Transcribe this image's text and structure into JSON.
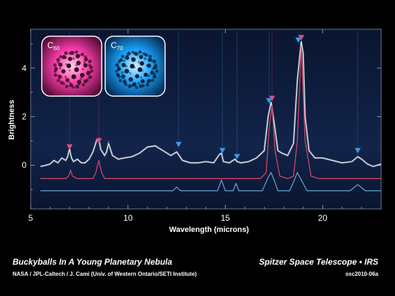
{
  "chart_data": {
    "type": "line",
    "title": "",
    "xlabel": "Wavelength (microns)",
    "ylabel": "Brightness",
    "xlim": [
      5,
      23
    ],
    "ylim": [
      -1.8,
      5.6
    ],
    "x_ticks": [
      "5",
      "10",
      "15",
      "20"
    ],
    "x_tick_values": [
      5,
      10,
      15,
      20
    ],
    "y_ticks": [
      "0",
      "2",
      "4"
    ],
    "y_tick_values": [
      0,
      2,
      4
    ],
    "colors": {
      "background": "#0b1833",
      "observed": "#ffffff",
      "c60": "#e04a6a",
      "c70": "#6aa8d8",
      "c60_marker": "#e0508a",
      "c70_marker": "#3a9ae8"
    },
    "series": [
      {
        "key": "observed",
        "x": [
          5.5,
          5.8,
          6.0,
          6.2,
          6.4,
          6.6,
          6.8,
          6.9,
          7.0,
          7.05,
          7.1,
          7.2,
          7.4,
          7.6,
          7.8,
          8.0,
          8.2,
          8.4,
          8.5,
          8.6,
          8.8,
          8.9,
          9.0,
          9.2,
          9.5,
          9.8,
          10.2,
          10.6,
          11.0,
          11.4,
          11.8,
          12.2,
          12.5,
          12.8,
          13.2,
          13.6,
          14.0,
          14.4,
          14.7,
          14.8,
          14.9,
          15.2,
          15.5,
          15.6,
          15.8,
          16.2,
          16.6,
          17.0,
          17.2,
          17.35,
          17.5,
          17.7,
          17.9,
          18.2,
          18.5,
          18.7,
          18.9,
          19.0,
          19.1,
          19.3,
          19.6,
          20.0,
          20.5,
          21.0,
          21.5,
          21.8,
          22.0,
          22.3,
          22.6,
          23.0
        ],
        "y": [
          -0.05,
          0.0,
          0.05,
          0.2,
          0.1,
          0.3,
          0.2,
          0.35,
          0.7,
          0.45,
          0.3,
          0.15,
          0.25,
          0.1,
          0.1,
          0.25,
          0.55,
          1.05,
          1.1,
          0.65,
          0.4,
          0.55,
          0.9,
          0.4,
          0.25,
          0.3,
          0.35,
          0.5,
          0.75,
          0.8,
          0.6,
          0.4,
          0.55,
          0.2,
          0.1,
          0.1,
          0.15,
          0.1,
          0.45,
          0.5,
          0.15,
          0.1,
          0.25,
          0.15,
          0.1,
          0.15,
          0.3,
          0.6,
          2.0,
          2.6,
          1.8,
          0.6,
          0.5,
          0.4,
          0.9,
          3.5,
          5.1,
          4.6,
          2.0,
          0.6,
          0.3,
          0.3,
          0.2,
          0.1,
          0.15,
          0.35,
          0.25,
          0.05,
          -0.05,
          0.05
        ]
      },
      {
        "key": "c60",
        "x": [
          5.5,
          6.8,
          6.95,
          7.05,
          7.15,
          7.4,
          8.2,
          8.35,
          8.5,
          8.65,
          8.8,
          16.8,
          17.1,
          17.25,
          17.4,
          17.55,
          17.8,
          18.2,
          18.5,
          18.7,
          18.9,
          19.1,
          19.4,
          19.8,
          23.0
        ],
        "y": [
          -0.55,
          -0.55,
          -0.45,
          -0.2,
          -0.45,
          -0.55,
          -0.55,
          -0.3,
          0.2,
          -0.3,
          -0.55,
          -0.55,
          -0.3,
          1.5,
          2.5,
          0.6,
          -0.45,
          -0.55,
          -0.45,
          1.0,
          4.9,
          1.0,
          -0.45,
          -0.55,
          -0.55
        ]
      },
      {
        "key": "c70",
        "x": [
          5.5,
          12.3,
          12.5,
          12.7,
          14.6,
          14.8,
          15.0,
          15.4,
          15.55,
          15.7,
          16.9,
          17.2,
          17.35,
          17.5,
          17.7,
          18.3,
          18.5,
          18.7,
          18.9,
          19.2,
          21.4,
          21.8,
          22.2,
          23.0
        ],
        "y": [
          -1.05,
          -1.05,
          -0.9,
          -1.05,
          -1.05,
          -0.6,
          -1.05,
          -1.05,
          -0.75,
          -1.05,
          -1.05,
          -0.5,
          -0.3,
          -0.6,
          -1.05,
          -1.05,
          -0.7,
          -0.3,
          -0.6,
          -1.05,
          -1.05,
          -0.8,
          -1.05,
          -1.05
        ]
      }
    ],
    "markers": {
      "c60": [
        {
          "x": 7.0,
          "y": 0.75
        },
        {
          "x": 8.5,
          "y": 1.0
        },
        {
          "x": 17.4,
          "y": 2.75
        },
        {
          "x": 18.9,
          "y": 5.25
        }
      ],
      "c70": [
        {
          "x": 12.6,
          "y": 0.85
        },
        {
          "x": 14.85,
          "y": 0.6
        },
        {
          "x": 15.6,
          "y": 0.35
        },
        {
          "x": 17.25,
          "y": 2.65
        },
        {
          "x": 18.75,
          "y": 5.15
        },
        {
          "x": 21.8,
          "y": 0.6
        }
      ]
    },
    "insets": [
      {
        "key": "c60",
        "label_base": "C",
        "label_sub": "60",
        "glow": "#ff4fb0",
        "ball": "#2a0a18"
      },
      {
        "key": "c70",
        "label_base": "C",
        "label_sub": "70",
        "glow": "#22a8ff",
        "ball": "#061a2e"
      }
    ]
  },
  "caption": {
    "title": "Buckyballs In A Young Planetary Nebula",
    "credit": "NASA / JPL-Caltech / J. Cami (Univ. of Western Ontario/SETI Institute)",
    "mission": "Spitzer Space Telescope • IRS",
    "image_id": "ssc2010-06a"
  }
}
